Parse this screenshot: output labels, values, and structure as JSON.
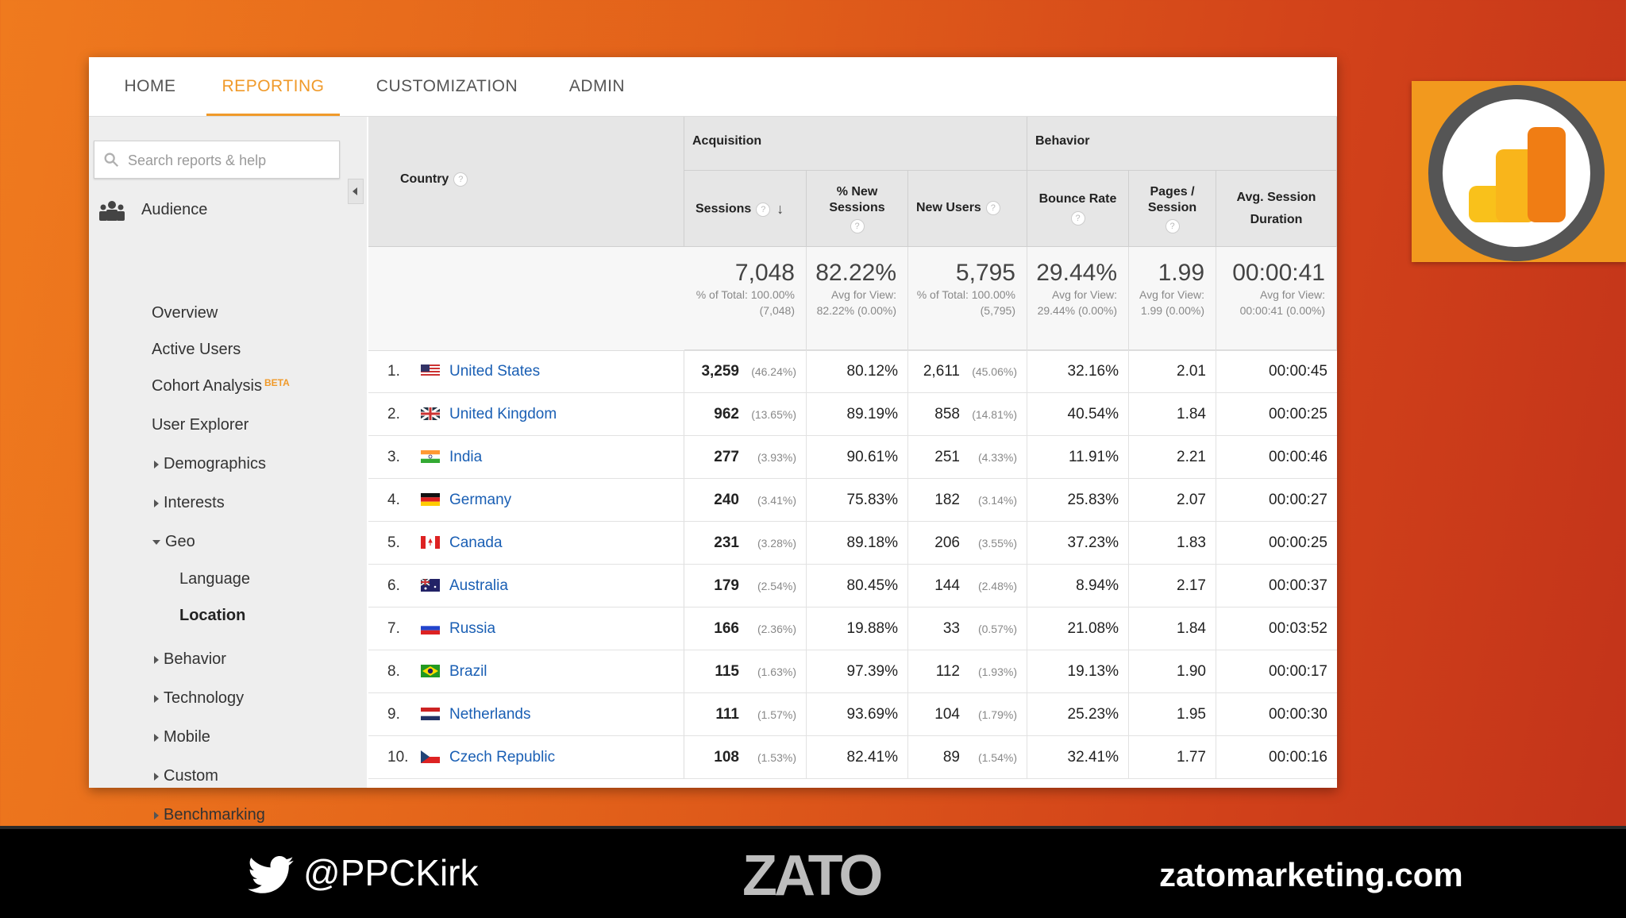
{
  "nav": {
    "tabs": [
      {
        "label": "HOME"
      },
      {
        "label": "REPORTING"
      },
      {
        "label": "CUSTOMIZATION"
      },
      {
        "label": "ADMIN"
      }
    ],
    "active": "REPORTING",
    "accent_color": "#f09a2a"
  },
  "sidebar": {
    "search_placeholder": "Search reports & help",
    "section": "Audience",
    "items": [
      {
        "label": "Overview"
      },
      {
        "label": "Active Users"
      },
      {
        "label": "Cohort Analysis",
        "badge": "BETA"
      },
      {
        "label": "User Explorer"
      },
      {
        "label": "Demographics"
      },
      {
        "label": "Interests"
      },
      {
        "label": "Geo"
      },
      {
        "label": "Language"
      },
      {
        "label": "Location"
      },
      {
        "label": "Behavior"
      },
      {
        "label": "Technology"
      },
      {
        "label": "Mobile"
      },
      {
        "label": "Custom"
      },
      {
        "label": "Benchmarking"
      }
    ]
  },
  "table": {
    "col_country": "Country",
    "group_acquisition": "Acquisition",
    "group_behavior": "Behavior",
    "col_sessions": "Sessions",
    "col_new_sessions": "% New Sessions",
    "col_new_users": "New Users",
    "col_bounce": "Bounce Rate",
    "col_pages": "Pages / Session",
    "col_duration": "Avg. Session Duration",
    "totals": {
      "sessions": "7,048",
      "sessions_sub": "% of Total: 100.00% (7,048)",
      "new_sessions": "82.22%",
      "new_sessions_sub": "Avg for View: 82.22% (0.00%)",
      "new_users": "5,795",
      "new_users_sub": "% of Total: 100.00% (5,795)",
      "bounce": "29.44%",
      "bounce_sub": "Avg for View: 29.44% (0.00%)",
      "pages": "1.99",
      "pages_sub": "Avg for View: 1.99 (0.00%)",
      "duration": "00:00:41",
      "duration_sub": "Avg for View: 00:00:41 (0.00%)"
    },
    "rows": [
      {
        "rank": "1.",
        "country": "United States",
        "flag": "us",
        "sessions": "3,259",
        "sessions_pct": "(46.24%)",
        "new_sessions": "80.12%",
        "new_users": "2,611",
        "new_users_pct": "(45.06%)",
        "bounce": "32.16%",
        "pages": "2.01",
        "duration": "00:00:45"
      },
      {
        "rank": "2.",
        "country": "United Kingdom",
        "flag": "gb",
        "sessions": "962",
        "sessions_pct": "(13.65%)",
        "new_sessions": "89.19%",
        "new_users": "858",
        "new_users_pct": "(14.81%)",
        "bounce": "40.54%",
        "pages": "1.84",
        "duration": "00:00:25"
      },
      {
        "rank": "3.",
        "country": "India",
        "flag": "in",
        "sessions": "277",
        "sessions_pct": "(3.93%)",
        "new_sessions": "90.61%",
        "new_users": "251",
        "new_users_pct": "(4.33%)",
        "bounce": "11.91%",
        "pages": "2.21",
        "duration": "00:00:46"
      },
      {
        "rank": "4.",
        "country": "Germany",
        "flag": "de",
        "sessions": "240",
        "sessions_pct": "(3.41%)",
        "new_sessions": "75.83%",
        "new_users": "182",
        "new_users_pct": "(3.14%)",
        "bounce": "25.83%",
        "pages": "2.07",
        "duration": "00:00:27"
      },
      {
        "rank": "5.",
        "country": "Canada",
        "flag": "ca",
        "sessions": "231",
        "sessions_pct": "(3.28%)",
        "new_sessions": "89.18%",
        "new_users": "206",
        "new_users_pct": "(3.55%)",
        "bounce": "37.23%",
        "pages": "1.83",
        "duration": "00:00:25"
      },
      {
        "rank": "6.",
        "country": "Australia",
        "flag": "au",
        "sessions": "179",
        "sessions_pct": "(2.54%)",
        "new_sessions": "80.45%",
        "new_users": "144",
        "new_users_pct": "(2.48%)",
        "bounce": "8.94%",
        "pages": "2.17",
        "duration": "00:00:37"
      },
      {
        "rank": "7.",
        "country": "Russia",
        "flag": "ru",
        "sessions": "166",
        "sessions_pct": "(2.36%)",
        "new_sessions": "19.88%",
        "new_users": "33",
        "new_users_pct": "(0.57%)",
        "bounce": "21.08%",
        "pages": "1.84",
        "duration": "00:03:52"
      },
      {
        "rank": "8.",
        "country": "Brazil",
        "flag": "br",
        "sessions": "115",
        "sessions_pct": "(1.63%)",
        "new_sessions": "97.39%",
        "new_users": "112",
        "new_users_pct": "(1.93%)",
        "bounce": "19.13%",
        "pages": "1.90",
        "duration": "00:00:17"
      },
      {
        "rank": "9.",
        "country": "Netherlands",
        "flag": "nl",
        "sessions": "111",
        "sessions_pct": "(1.57%)",
        "new_sessions": "93.69%",
        "new_users": "104",
        "new_users_pct": "(1.79%)",
        "bounce": "25.23%",
        "pages": "1.95",
        "duration": "00:00:30"
      },
      {
        "rank": "10.",
        "country": "Czech Republic",
        "flag": "cz",
        "sessions": "108",
        "sessions_pct": "(1.53%)",
        "new_sessions": "82.41%",
        "new_users": "89",
        "new_users_pct": "(1.54%)",
        "bounce": "32.41%",
        "pages": "1.77",
        "duration": "00:00:16"
      }
    ],
    "link_color": "#1a5fb4"
  },
  "footer": {
    "handle": "@PPCKirk",
    "brand": "ZATO",
    "site": "zatomarketing.com"
  }
}
